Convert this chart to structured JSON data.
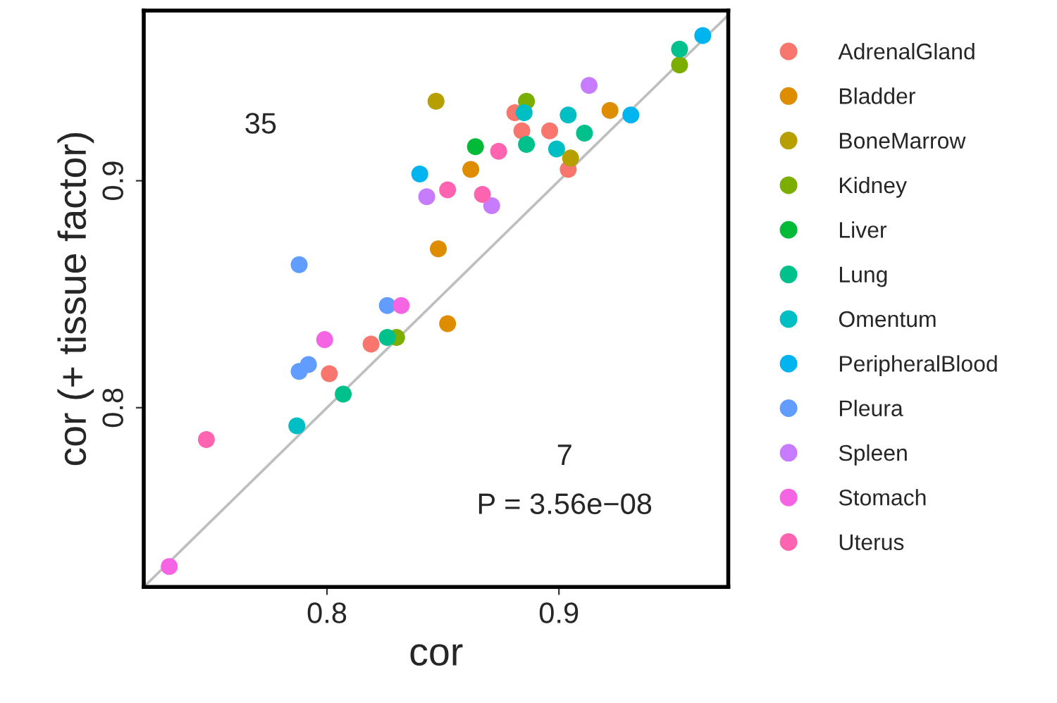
{
  "chart_data": {
    "type": "scatter",
    "xlabel": "cor",
    "ylabel": "cor (+ tissue factor)",
    "xlim": [
      0.721,
      0.973
    ],
    "ylim": [
      0.721,
      0.975
    ],
    "xticks": [
      0.8,
      0.9
    ],
    "yticks": [
      0.8,
      0.9
    ],
    "grid": false,
    "legend": "right",
    "marker": "circle",
    "annotations": [
      "35",
      "7",
      "P = 3.56e−08"
    ],
    "series": [
      {
        "name": "AdrenalGland",
        "color": "#f8766d",
        "x": [
          0.881,
          0.884,
          0.896,
          0.904,
          0.819,
          0.801
        ],
        "values": [
          0.93,
          0.922,
          0.922,
          0.905,
          0.828,
          0.815
        ]
      },
      {
        "name": "Bladder",
        "color": "#de8c00",
        "x": [
          0.862,
          0.922,
          0.848,
          0.852
        ],
        "values": [
          0.905,
          0.931,
          0.87,
          0.837
        ]
      },
      {
        "name": "BoneMarrow",
        "color": "#b79f00",
        "x": [
          0.847,
          0.905
        ],
        "values": [
          0.935,
          0.91
        ]
      },
      {
        "name": "Kidney",
        "color": "#7cae00",
        "x": [
          0.886,
          0.952,
          0.83
        ],
        "values": [
          0.935,
          0.951,
          0.831
        ]
      },
      {
        "name": "Liver",
        "color": "#00ba38",
        "x": [
          0.864
        ],
        "values": [
          0.915
        ]
      },
      {
        "name": "Lung",
        "color": "#00c08b",
        "x": [
          0.886,
          0.911,
          0.952,
          0.826,
          0.807
        ],
        "values": [
          0.916,
          0.921,
          0.958,
          0.831,
          0.806
        ]
      },
      {
        "name": "Omentum",
        "color": "#00bfc4",
        "x": [
          0.885,
          0.904,
          0.899,
          0.787
        ],
        "values": [
          0.93,
          0.929,
          0.914,
          0.792
        ]
      },
      {
        "name": "PeripheralBlood",
        "color": "#00b4f0",
        "x": [
          0.962,
          0.931,
          0.84
        ],
        "values": [
          0.964,
          0.929,
          0.903
        ]
      },
      {
        "name": "Pleura",
        "color": "#619cff",
        "x": [
          0.788,
          0.826,
          0.792,
          0.788
        ],
        "values": [
          0.863,
          0.845,
          0.819,
          0.816
        ]
      },
      {
        "name": "Spleen",
        "color": "#c77cff",
        "x": [
          0.913,
          0.843,
          0.871
        ],
        "values": [
          0.942,
          0.893,
          0.889
        ]
      },
      {
        "name": "Stomach",
        "color": "#f564e3",
        "x": [
          0.832,
          0.799,
          0.732
        ],
        "values": [
          0.845,
          0.83,
          0.73
        ]
      },
      {
        "name": "Uterus",
        "color": "#ff64b0",
        "x": [
          0.874,
          0.852,
          0.867,
          0.748
        ],
        "values": [
          0.913,
          0.896,
          0.894,
          0.786
        ]
      },
      {
        "type": "line",
        "marker": "none",
        "color": "#bebebe",
        "x": [
          0.721,
          0.973
        ],
        "values": [
          0.721,
          0.973
        ]
      }
    ]
  }
}
